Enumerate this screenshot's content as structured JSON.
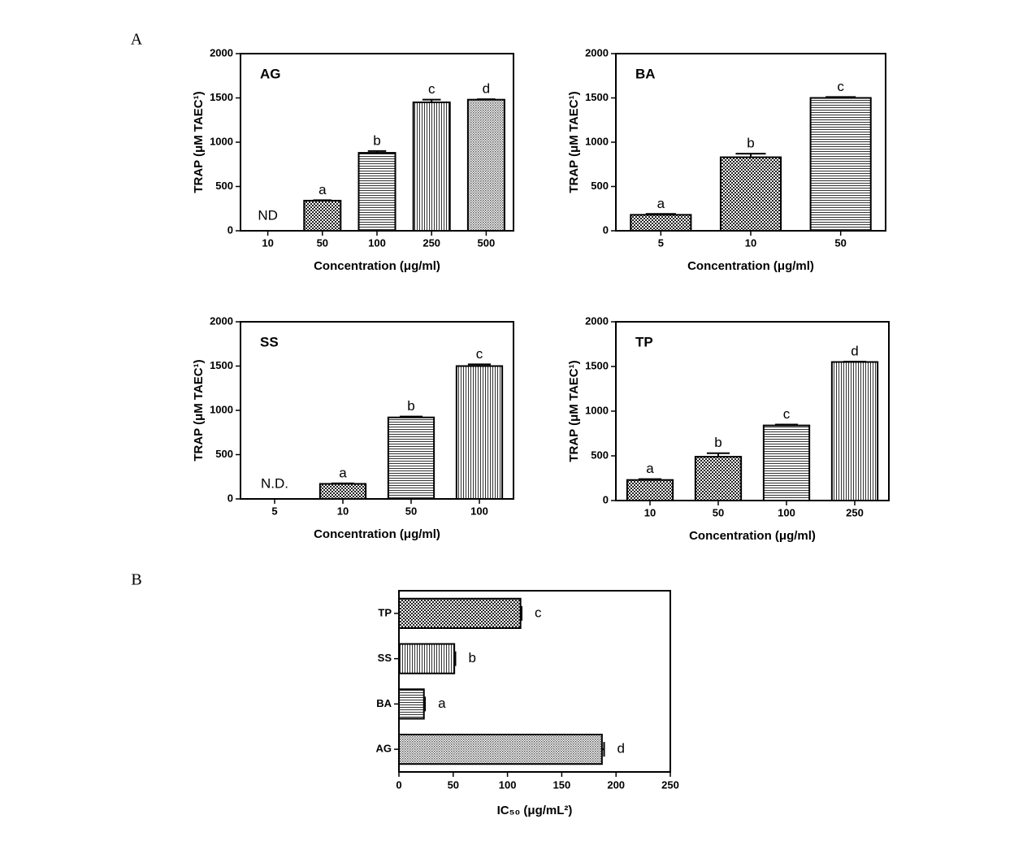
{
  "chart_data": [
    {
      "type": "bar",
      "panel": "A",
      "title": "AG",
      "ylabel": "TRAP (μM TAEC¹)",
      "xlabel": "Concentration (μg/ml)",
      "categories": [
        "10",
        "50",
        "100",
        "250",
        "500"
      ],
      "values": [
        null,
        340,
        880,
        1450,
        1480
      ],
      "errors": [
        null,
        5,
        20,
        30,
        5
      ],
      "letters": [
        "ND",
        "a",
        "b",
        "c",
        "d"
      ],
      "ylim": [
        0,
        2000
      ],
      "yticks": [
        0,
        500,
        1000,
        1500,
        2000
      ],
      "color": "#000000"
    },
    {
      "type": "bar",
      "title": "BA",
      "ylabel": "TRAP (μM TAEC¹)",
      "xlabel": "Concentration (μg/ml)",
      "categories": [
        "5",
        "10",
        "50"
      ],
      "values": [
        180,
        830,
        1500
      ],
      "errors": [
        10,
        40,
        10
      ],
      "letters": [
        "a",
        "b",
        "c"
      ],
      "ylim": [
        0,
        2000
      ],
      "yticks": [
        0,
        500,
        1000,
        1500,
        2000
      ],
      "color": "#000000"
    },
    {
      "type": "bar",
      "title": "SS",
      "ylabel": "TRAP (μM TAEC¹)",
      "xlabel": "Concentration (μg/ml)",
      "categories": [
        "5",
        "10",
        "50",
        "100"
      ],
      "values": [
        null,
        170,
        920,
        1500
      ],
      "errors": [
        null,
        5,
        10,
        20
      ],
      "letters": [
        "N.D.",
        "a",
        "b",
        "c"
      ],
      "ylim": [
        0,
        2000
      ],
      "yticks": [
        0,
        500,
        1000,
        1500,
        2000
      ],
      "color": "#000000"
    },
    {
      "type": "bar",
      "title": "TP",
      "ylabel": "TRAP (μM TAEC¹)",
      "xlabel": "Concentration (μg/ml)",
      "categories": [
        "10",
        "50",
        "100",
        "250"
      ],
      "values": [
        230,
        490,
        840,
        1550
      ],
      "errors": [
        10,
        40,
        10,
        5
      ],
      "letters": [
        "a",
        "b",
        "c",
        "d"
      ],
      "ylim": [
        0,
        2000
      ],
      "yticks": [
        0,
        500,
        1000,
        1500,
        2000
      ],
      "color": "#000000"
    },
    {
      "type": "hbar",
      "panel": "B",
      "xlabel": "IC₅₀ (μg/mL²)",
      "categories": [
        "TP",
        "SS",
        "BA",
        "AG"
      ],
      "values": [
        112,
        51,
        23,
        187
      ],
      "errors": [
        1,
        1,
        1,
        2
      ],
      "letters": [
        "c",
        "b",
        "a",
        "d"
      ],
      "xlim": [
        0,
        250
      ],
      "xticks": [
        0,
        50,
        100,
        150,
        200,
        250
      ],
      "color": "#000000"
    }
  ]
}
